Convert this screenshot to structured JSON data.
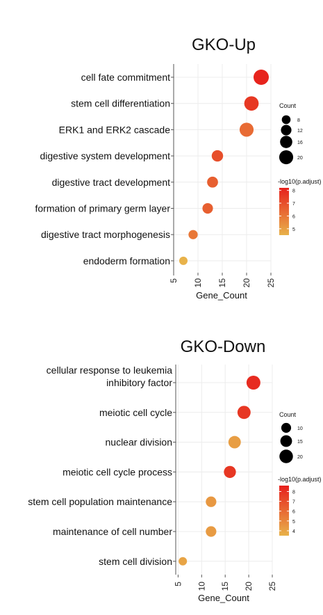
{
  "chart_data": [
    {
      "type": "scatter",
      "title": "GKO-Up",
      "xlabel": "Gene_Count",
      "ylabel": "",
      "xlim": [
        5,
        25
      ],
      "xticks": [
        5,
        10,
        15,
        20,
        25
      ],
      "grid": true,
      "legend_position": "right",
      "terms": [
        {
          "label": "cell fate commitment",
          "gene_count": 23,
          "neg_log10_padj": 8.1
        },
        {
          "label": "stem cell differentiation",
          "gene_count": 21,
          "neg_log10_padj": 7.6
        },
        {
          "label": "ERK1 and ERK2 cascade",
          "gene_count": 20,
          "neg_log10_padj": 6.3
        },
        {
          "label": "digestive system development",
          "gene_count": 14,
          "neg_log10_padj": 7.0
        },
        {
          "label": "digestive tract development",
          "gene_count": 13,
          "neg_log10_padj": 6.6
        },
        {
          "label": "formation of primary germ layer",
          "gene_count": 12,
          "neg_log10_padj": 6.6
        },
        {
          "label": "digestive tract morphogenesis",
          "gene_count": 9,
          "neg_log10_padj": 6.0
        },
        {
          "label": "endoderm formation",
          "gene_count": 7,
          "neg_log10_padj": 4.5
        }
      ],
      "size_legend": {
        "title": "Count",
        "values": [
          8,
          12,
          16,
          20
        ]
      },
      "color_legend": {
        "title": "-log10(p.adjust)",
        "ticks": [
          5,
          6,
          7,
          8
        ],
        "min": 4.5,
        "max": 8.2,
        "low_color": "#e8b24a",
        "high_color": "#e7201c"
      }
    },
    {
      "type": "scatter",
      "title": "GKO-Down",
      "xlabel": "Gene_Count",
      "ylabel": "",
      "xlim": [
        4.5,
        25
      ],
      "xticks": [
        5,
        10,
        15,
        20,
        25
      ],
      "grid": true,
      "legend_position": "right",
      "terms": [
        {
          "label": "cellular response to leukemia inhibitory factor",
          "lines": [
            "cellular response to leukemia",
            "inhibitory factor"
          ],
          "gene_count": 21,
          "neg_log10_padj": 8.2
        },
        {
          "label": "meiotic cell cycle",
          "gene_count": 19,
          "neg_log10_padj": 7.8
        },
        {
          "label": "nuclear division",
          "gene_count": 17,
          "neg_log10_padj": 4.2
        },
        {
          "label": "meiotic cell cycle process",
          "gene_count": 16,
          "neg_log10_padj": 7.8
        },
        {
          "label": "stem cell population maintenance",
          "gene_count": 12,
          "neg_log10_padj": 4.4
        },
        {
          "label": "maintenance of cell number",
          "gene_count": 12,
          "neg_log10_padj": 4.3
        },
        {
          "label": "stem cell division",
          "gene_count": 6,
          "neg_log10_padj": 4.0
        }
      ],
      "size_legend": {
        "title": "Count",
        "values": [
          10,
          15,
          20
        ]
      },
      "color_legend": {
        "title": "-log10(p.adjust)",
        "ticks": [
          4,
          5,
          6,
          7,
          8
        ],
        "min": 3.5,
        "max": 8.6,
        "low_color": "#e8b24a",
        "high_color": "#e7201c"
      }
    }
  ]
}
